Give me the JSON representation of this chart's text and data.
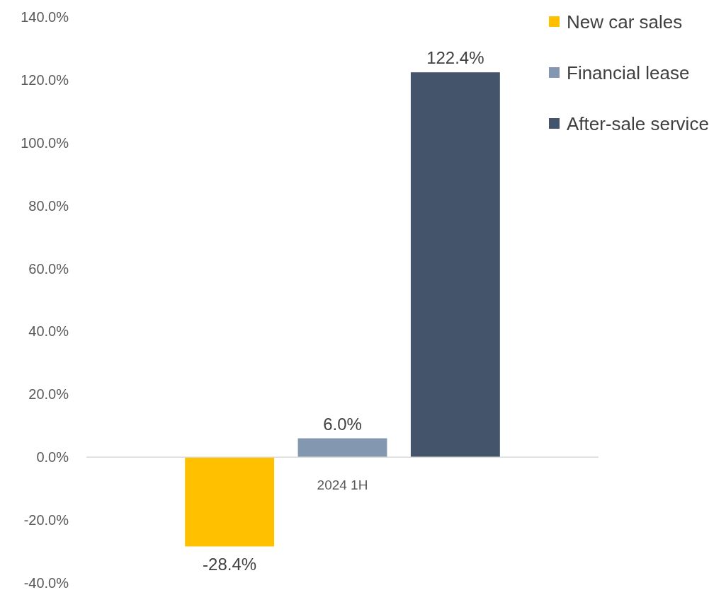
{
  "chart_data": {
    "type": "bar",
    "categories": [
      "2024 1H"
    ],
    "series": [
      {
        "name": "New car sales",
        "color": "#ffc000",
        "values": [
          -28.4
        ],
        "value_labels": [
          "-28.4%"
        ]
      },
      {
        "name": "Financial lease",
        "color": "#8497b0",
        "values": [
          6.0
        ],
        "value_labels": [
          "6.0%"
        ]
      },
      {
        "name": "After-sale service",
        "color": "#44546a",
        "values": [
          122.4
        ],
        "value_labels": [
          "122.4%"
        ]
      }
    ],
    "ylim": [
      -40,
      140
    ],
    "yticks": [
      {
        "value": -40,
        "label": "-40.0%"
      },
      {
        "value": -20,
        "label": "-20.0%"
      },
      {
        "value": 0,
        "label": "0.0%"
      },
      {
        "value": 20,
        "label": "20.0%"
      },
      {
        "value": 40,
        "label": "40.0%"
      },
      {
        "value": 60,
        "label": "60.0%"
      },
      {
        "value": 80,
        "label": "80.0%"
      },
      {
        "value": 100,
        "label": "100.0%"
      },
      {
        "value": 120,
        "label": "120.0%"
      },
      {
        "value": 140,
        "label": "140.0%"
      }
    ],
    "legend": "top right"
  }
}
